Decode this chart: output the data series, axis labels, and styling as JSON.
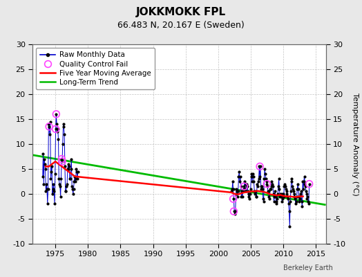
{
  "title": "JOKKMOKK FPL",
  "subtitle": "66.483 N, 20.167 E (Sweden)",
  "ylabel_right": "Temperature Anomaly (°C)",
  "watermark": "Berkeley Earth",
  "xlim": [
    1971.5,
    2016.5
  ],
  "ylim": [
    -10,
    30
  ],
  "yticks": [
    -10,
    -5,
    0,
    5,
    10,
    15,
    20,
    25,
    30
  ],
  "xticks": [
    1975,
    1980,
    1985,
    1990,
    1995,
    2000,
    2005,
    2010,
    2015
  ],
  "bg_color": "#e8e8e8",
  "plot_bg_color": "#ffffff",
  "raw_color": "#0000cc",
  "raw_marker_color": "#000000",
  "qc_fail_color": "#ff44ff",
  "moving_avg_color": "#ff0000",
  "trend_color": "#00bb00",
  "raw_monthly_x": [
    1973.042,
    1973.125,
    1973.208,
    1973.292,
    1973.375,
    1973.458,
    1973.542,
    1973.625,
    1973.708,
    1973.792,
    1973.875,
    1973.958,
    1974.042,
    1974.125,
    1974.208,
    1974.292,
    1974.375,
    1974.458,
    1974.542,
    1974.625,
    1974.708,
    1974.792,
    1974.875,
    1974.958,
    1975.042,
    1975.125,
    1975.208,
    1975.292,
    1975.375,
    1975.458,
    1975.542,
    1975.625,
    1975.708,
    1975.792,
    1975.875,
    1975.958,
    1976.042,
    1976.125,
    1976.208,
    1976.292,
    1976.375,
    1976.458,
    1976.542,
    1976.625,
    1976.708,
    1976.792,
    1976.875,
    1976.958,
    1977.042,
    1977.125,
    1977.208,
    1977.292,
    1977.375,
    1977.458,
    1977.542,
    1977.625,
    1977.708,
    1977.792,
    1977.875,
    1977.958,
    1978.042,
    1978.125,
    1978.208,
    1978.292,
    1978.375,
    1978.458,
    2002.042,
    2002.125,
    2002.208,
    2002.292,
    2002.375,
    2002.458,
    2002.542,
    2002.625,
    2002.708,
    2002.792,
    2002.875,
    2002.958,
    2003.042,
    2003.125,
    2003.208,
    2003.292,
    2003.375,
    2003.458,
    2003.542,
    2003.625,
    2003.708,
    2003.792,
    2003.875,
    2003.958,
    2004.042,
    2004.125,
    2004.208,
    2004.292,
    2004.375,
    2004.458,
    2004.542,
    2004.625,
    2004.708,
    2004.792,
    2004.875,
    2004.958,
    2005.042,
    2005.125,
    2005.208,
    2005.292,
    2005.375,
    2005.458,
    2005.542,
    2005.625,
    2005.708,
    2005.792,
    2005.875,
    2005.958,
    2006.042,
    2006.125,
    2006.208,
    2006.292,
    2006.375,
    2006.458,
    2006.542,
    2006.625,
    2006.708,
    2006.792,
    2006.875,
    2006.958,
    2007.042,
    2007.125,
    2007.208,
    2007.292,
    2007.375,
    2007.458,
    2007.542,
    2007.625,
    2007.708,
    2007.792,
    2007.875,
    2007.958,
    2008.042,
    2008.125,
    2008.208,
    2008.292,
    2008.375,
    2008.458,
    2008.542,
    2008.625,
    2008.708,
    2008.792,
    2008.875,
    2008.958,
    2009.042,
    2009.125,
    2009.208,
    2009.292,
    2009.375,
    2009.458,
    2009.542,
    2009.625,
    2009.708,
    2009.792,
    2009.875,
    2009.958,
    2010.042,
    2010.125,
    2010.208,
    2010.292,
    2010.375,
    2010.458,
    2010.542,
    2010.625,
    2010.708,
    2010.792,
    2010.875,
    2010.958,
    2011.042,
    2011.125,
    2011.208,
    2011.292,
    2011.375,
    2011.458,
    2011.542,
    2011.625,
    2011.708,
    2011.792,
    2011.875,
    2011.958,
    2012.042,
    2012.125,
    2012.208,
    2012.292,
    2012.375,
    2012.458,
    2012.542,
    2012.625,
    2012.708,
    2012.792,
    2012.875,
    2012.958,
    2013.042,
    2013.125,
    2013.208,
    2013.292,
    2013.375,
    2013.458,
    2013.542,
    2013.625,
    2013.708,
    2013.792,
    2013.875,
    2013.958
  ],
  "raw_monthly_y": [
    3.5,
    8.0,
    2.0,
    7.0,
    6.0,
    5.0,
    0.5,
    2.0,
    1.0,
    -2.0,
    1.0,
    14.0,
    13.5,
    12.0,
    14.5,
    3.0,
    4.5,
    5.5,
    0.0,
    1.0,
    2.0,
    0.5,
    -2.0,
    4.0,
    13.0,
    16.0,
    14.0,
    12.5,
    13.0,
    11.0,
    3.0,
    2.0,
    1.5,
    -0.5,
    3.0,
    7.0,
    6.5,
    10.0,
    14.0,
    13.5,
    12.0,
    5.5,
    0.5,
    0.5,
    1.5,
    2.0,
    5.0,
    6.0,
    5.0,
    5.5,
    3.0,
    3.0,
    5.0,
    7.0,
    1.5,
    1.0,
    0.0,
    1.0,
    2.5,
    3.5,
    2.5,
    3.0,
    5.0,
    4.5,
    3.0,
    4.5,
    0.5,
    1.0,
    2.5,
    1.0,
    -1.0,
    -3.5,
    -4.0,
    -3.5,
    0.0,
    1.0,
    0.5,
    -0.5,
    0.5,
    3.5,
    4.5,
    2.5,
    3.5,
    1.5,
    -0.5,
    0.5,
    -0.5,
    0.5,
    1.0,
    1.5,
    2.5,
    1.0,
    0.5,
    2.0,
    2.0,
    1.5,
    0.5,
    -0.5,
    0.0,
    -1.0,
    0.0,
    1.0,
    3.5,
    4.0,
    2.5,
    4.0,
    3.5,
    2.5,
    0.5,
    0.0,
    0.5,
    -0.5,
    -0.5,
    2.0,
    1.5,
    2.5,
    3.0,
    5.5,
    3.5,
    5.5,
    1.5,
    1.0,
    1.5,
    1.0,
    -1.0,
    -1.5,
    3.0,
    5.0,
    4.0,
    3.0,
    2.5,
    2.0,
    1.5,
    0.5,
    0.5,
    -0.5,
    -1.0,
    1.0,
    1.0,
    1.5,
    2.5,
    2.0,
    1.5,
    0.0,
    -1.5,
    -0.5,
    0.5,
    -0.5,
    -1.5,
    -2.0,
    -1.0,
    0.0,
    1.5,
    3.0,
    1.0,
    -0.5,
    0.0,
    -0.5,
    0.0,
    -1.5,
    -1.0,
    0.0,
    -0.5,
    1.5,
    2.0,
    1.5,
    1.0,
    0.5,
    0.0,
    -0.5,
    -1.0,
    -2.0,
    -3.5,
    -6.5,
    -1.5,
    0.5,
    2.5,
    3.0,
    1.5,
    1.0,
    0.5,
    -0.5,
    0.0,
    -1.0,
    -2.0,
    -1.5,
    -0.5,
    1.0,
    2.0,
    1.0,
    -0.5,
    -1.5,
    -1.0,
    0.0,
    0.5,
    -1.5,
    -2.5,
    2.5,
    1.0,
    2.5,
    3.5,
    2.0,
    1.5,
    0.5,
    0.0,
    -1.0,
    -0.5,
    -1.5,
    -2.0,
    2.0
  ],
  "qc_fail_x": [
    1974.042,
    1975.042,
    1975.125,
    1975.958,
    1976.042,
    2002.292,
    2002.375,
    2003.958,
    2006.375,
    2007.458,
    2013.958
  ],
  "qc_fail_y": [
    13.5,
    13.0,
    16.0,
    7.0,
    6.5,
    -1.0,
    -3.5,
    1.5,
    5.5,
    2.0,
    2.0
  ],
  "moving_avg_x": [
    1973.5,
    1974.0,
    1974.5,
    1975.0,
    1975.5,
    1976.0,
    1976.5,
    1977.0,
    1977.5,
    1978.0,
    2002.0,
    2002.5,
    2003.0,
    2003.5,
    2004.0,
    2004.5,
    2005.0,
    2005.5,
    2006.0,
    2006.5,
    2007.0,
    2007.5,
    2008.0,
    2008.5,
    2009.0,
    2009.5,
    2010.0,
    2010.5,
    2011.0,
    2011.5,
    2012.0,
    2012.5,
    2013.0
  ],
  "moving_avg_y": [
    5.5,
    5.5,
    6.0,
    6.5,
    6.0,
    5.5,
    5.0,
    4.5,
    4.0,
    3.5,
    0.3,
    0.0,
    -0.1,
    0.1,
    0.3,
    0.4,
    0.5,
    0.5,
    0.6,
    0.5,
    0.4,
    0.2,
    -0.1,
    -0.2,
    -0.3,
    -0.2,
    -0.4,
    -0.5,
    -0.5,
    -0.6,
    -0.6,
    -0.5,
    -0.5
  ],
  "trend_x": [
    1971.5,
    2016.5
  ],
  "trend_y": [
    7.8,
    -2.2
  ],
  "legend_labels": [
    "Raw Monthly Data",
    "Quality Control Fail",
    "Five Year Moving Average",
    "Long-Term Trend"
  ]
}
